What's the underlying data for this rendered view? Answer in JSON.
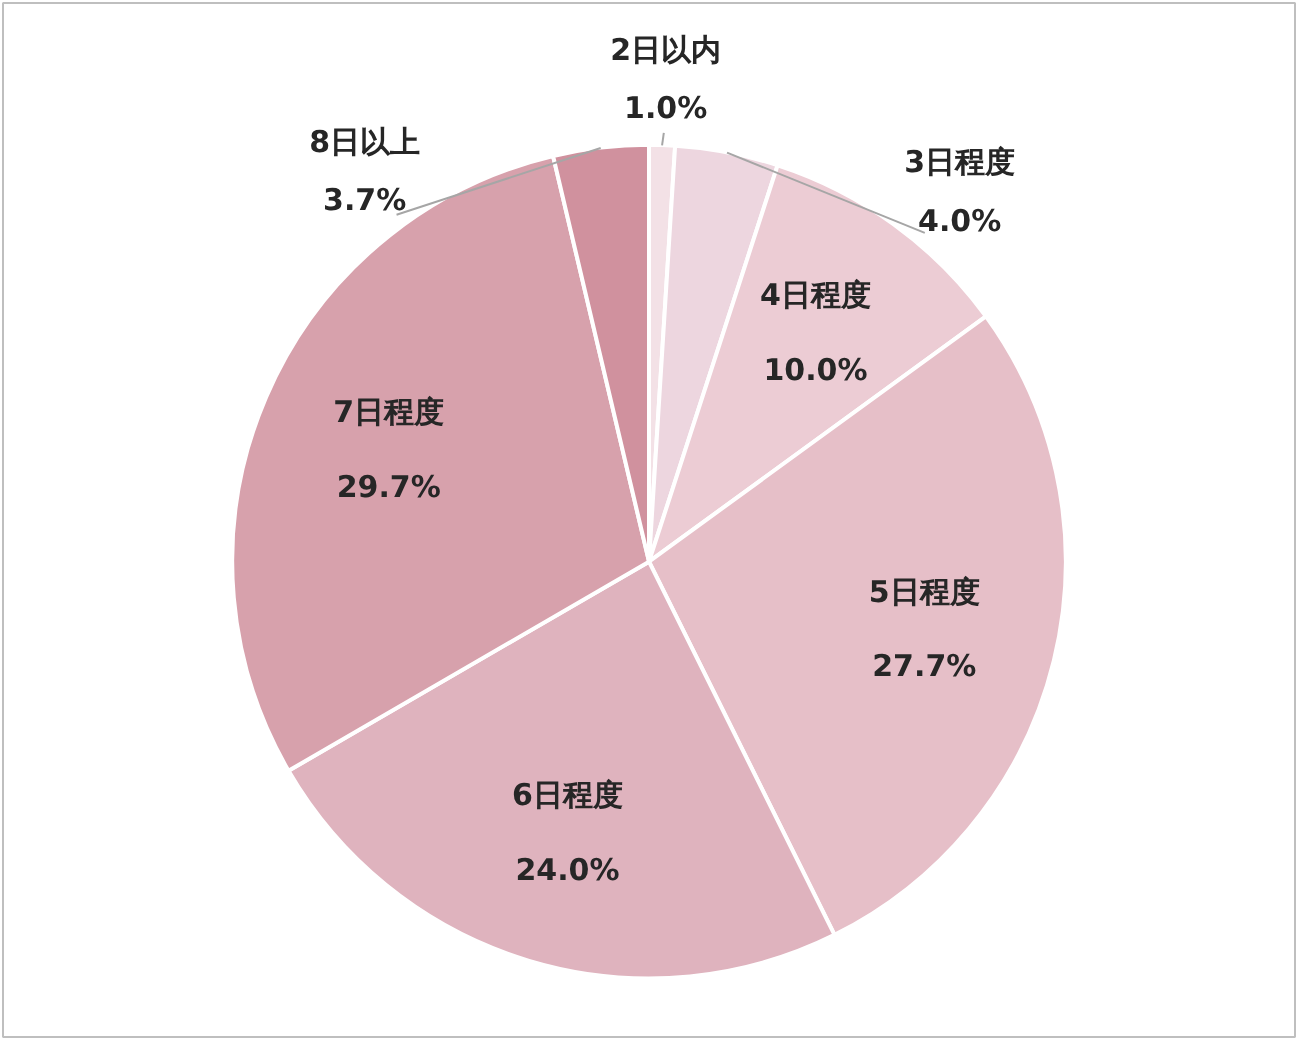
{
  "chart_data": {
    "type": "pie",
    "categories": [
      "2日以内",
      "3日程度",
      "4日程度",
      "5日程度",
      "6日程度",
      "7日程度",
      "8日以上"
    ],
    "values": [
      1.0,
      4.0,
      10.0,
      27.7,
      24.0,
      29.7,
      3.7
    ],
    "value_labels": [
      "1.0%",
      "4.0%",
      "10.0%",
      "27.7%",
      "24.0%",
      "29.7%",
      "3.7%"
    ],
    "colors": [
      "#f3e1e6",
      "#edd6df",
      "#ecccd4",
      "#e6bfc8",
      "#dfb3be",
      "#d7a1ac",
      "#d0919e"
    ]
  }
}
